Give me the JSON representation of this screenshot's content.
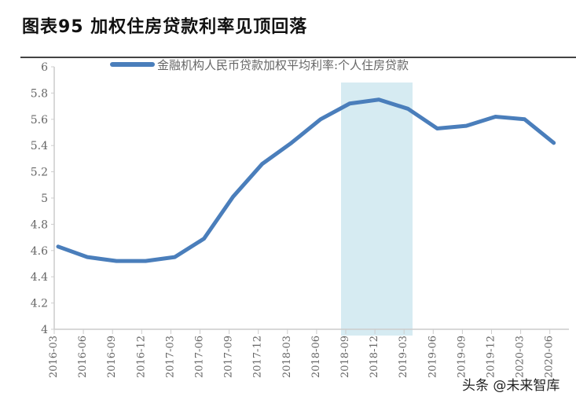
{
  "title": "图表95 加权住房贷款利率见顶回落",
  "watermark": "头条 @未来智库",
  "chart_data": {
    "type": "line",
    "title": "图表95 加权住房贷款利率见顶回落",
    "xlabel": "",
    "ylabel": "",
    "categories": [
      "2016-03",
      "2016-06",
      "2016-09",
      "2016-12",
      "2017-03",
      "2017-06",
      "2017-09",
      "2017-12",
      "2018-03",
      "2018-06",
      "2018-09",
      "2018-12",
      "2019-03",
      "2019-06",
      "2019-09",
      "2019-12",
      "2020-03",
      "2020-06"
    ],
    "series": [
      {
        "name": "金融机构人民币贷款加权平均利率:个人住房贷款",
        "values": [
          4.63,
          4.55,
          4.52,
          4.52,
          4.55,
          4.69,
          5.01,
          5.26,
          5.42,
          5.6,
          5.72,
          5.75,
          5.68,
          5.53,
          5.55,
          5.62,
          5.6,
          5.42
        ],
        "color": "#4a7ebb"
      }
    ],
    "ylim": [
      4,
      6
    ],
    "yticks": [
      "4",
      "4.2",
      "4.4",
      "4.6",
      "4.8",
      "5",
      "5.2",
      "5.4",
      "5.6",
      "5.8",
      "6"
    ],
    "highlight_range": [
      "2018-09",
      "2019-03"
    ],
    "highlight_color": "#d6ebf2",
    "grid": false,
    "legend": "top"
  }
}
